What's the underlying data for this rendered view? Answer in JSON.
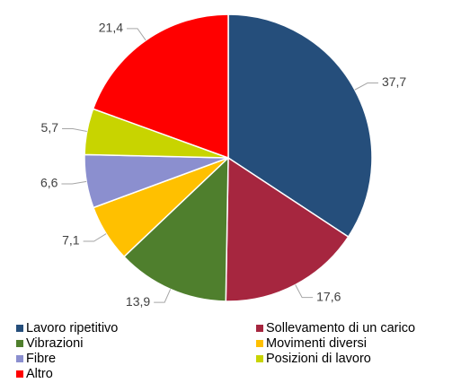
{
  "chart_data": {
    "type": "pie",
    "categories": [
      "Lavoro ripetitivo",
      "Sollevamento di un carico",
      "Vibrazioni",
      "Movimenti diversi",
      "Fibre",
      "Posizioni di lavoro",
      "Altro"
    ],
    "values": [
      37.7,
      17.6,
      13.9,
      7.1,
      6.6,
      5.7,
      21.4
    ],
    "value_labels": [
      "37,7",
      "17,6",
      "13,9",
      "7,1",
      "6,6",
      "5,7",
      "21,4"
    ],
    "colors": [
      "#254e7b",
      "#a6263f",
      "#4f7f2d",
      "#ffc000",
      "#8b8fcf",
      "#c8d400",
      "#ff0000"
    ],
    "legend": "bottom"
  }
}
